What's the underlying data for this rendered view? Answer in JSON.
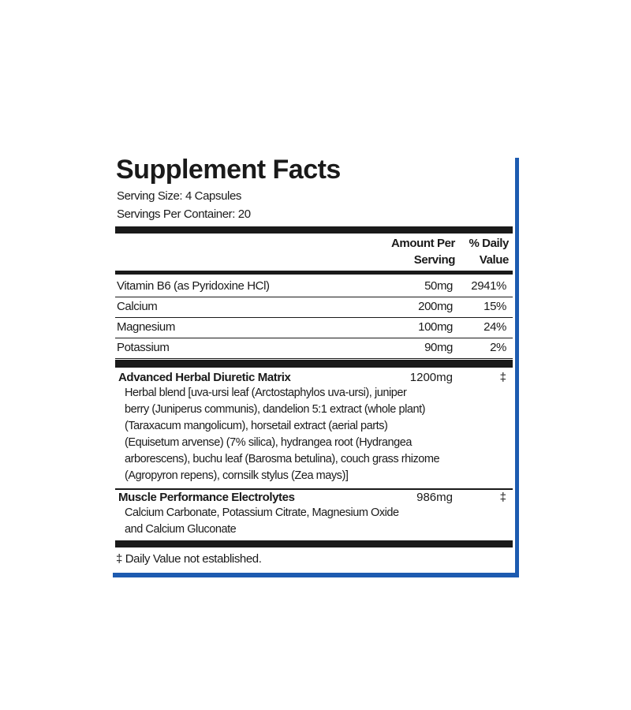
{
  "title": "Supplement Facts",
  "serving_size": "Serving Size: 4 Capsules",
  "servings_per_container": "Servings Per Container: 20",
  "table": {
    "headers": [
      "Amount Per Serving",
      "% Daily Value"
    ],
    "rows": [
      [
        "Vitamin B6 (as Pyridoxine HCl)",
        "50mg",
        "2941%"
      ],
      [
        "Calcium",
        "200mg",
        "15%"
      ],
      [
        "Magnesium",
        "100mg",
        "24%"
      ],
      [
        "Potassium",
        "90mg",
        "2%"
      ]
    ]
  },
  "blends": [
    {
      "name": "Advanced Herbal Diuretic Matrix",
      "amount": "1200mg",
      "dv": "‡",
      "lines": [
        "Herbal blend [uva-ursi leaf (Arctostaphylos uva-ursi), juniper",
        "berry (Juniperus communis), dandelion 5:1 extract (whole plant)",
        "(Taraxacum mangolicum), horsetail extract (aerial parts)",
        "(Equisetum arvense) (7% silica), hydrangea root (Hydrangea",
        "arborescens), buchu leaf (Barosma betulina), couch grass rhizome",
        "(Agropyron repens), cornsilk stylus (Zea mays)]"
      ]
    },
    {
      "name": "Muscle Performance Electrolytes",
      "amount": "986mg",
      "dv": "‡",
      "lines": [
        "Calcium Carbonate, Potassium Citrate, Magnesium Oxide",
        "and Calcium Gluconate"
      ]
    }
  ],
  "footnote": "‡ Daily Value not established."
}
